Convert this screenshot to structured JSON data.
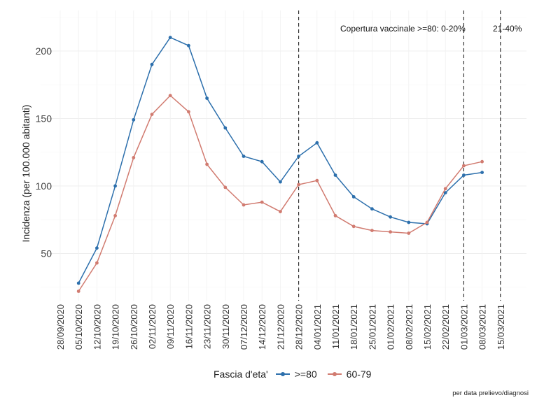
{
  "chart_data": {
    "type": "line",
    "xlabel": "",
    "ylabel": "Incidenza (per 100.000 abitanti)",
    "ylim": [
      15,
      230
    ],
    "yticks": [
      50,
      100,
      150,
      200
    ],
    "grid": true,
    "x_ticks": [
      "28/09/2020",
      "05/10/2020",
      "12/10/2020",
      "19/10/2020",
      "26/10/2020",
      "02/11/2020",
      "09/11/2020",
      "16/11/2020",
      "23/11/2020",
      "30/11/2020",
      "07/12/2020",
      "14/12/2020",
      "21/12/2020",
      "28/12/2020",
      "04/01/2021",
      "11/01/2021",
      "18/01/2021",
      "25/01/2021",
      "01/02/2021",
      "08/02/2021",
      "15/02/2021",
      "22/02/2021",
      "01/03/2021",
      "08/03/2021",
      "15/03/2021"
    ],
    "x": [
      "05/10/2020",
      "12/10/2020",
      "19/10/2020",
      "26/10/2020",
      "02/11/2020",
      "09/11/2020",
      "16/11/2020",
      "23/11/2020",
      "30/11/2020",
      "07/12/2020",
      "14/12/2020",
      "21/12/2020",
      "28/12/2020",
      "04/01/2021",
      "11/01/2021",
      "18/01/2021",
      "25/01/2021",
      "01/02/2021",
      "08/02/2021",
      "15/02/2021",
      "22/02/2021",
      "01/03/2021",
      "08/03/2021"
    ],
    "series": [
      {
        "name": ">=80",
        "color": "#2c6fac",
        "values": [
          28,
          54,
          100,
          149,
          190,
          210,
          204,
          165,
          143,
          122,
          118,
          103,
          122,
          132,
          108,
          92,
          83,
          77,
          73,
          72,
          95,
          108,
          110
        ]
      },
      {
        "name": "60-79",
        "color": "#d17b70",
        "values": [
          22,
          43,
          78,
          121,
          153,
          167,
          155,
          116,
          99,
          86,
          88,
          81,
          101,
          104,
          78,
          70,
          67,
          66,
          65,
          73,
          98,
          115,
          118
        ]
      }
    ],
    "vlines": [
      "28/12/2020",
      "01/03/2021",
      "15/03/2021"
    ],
    "annotations": [
      "Copertura vaccinale >=80:  0-20%",
      "21-40%"
    ],
    "legend_position": "bottom",
    "legend_title": "Fascia d'eta'"
  },
  "caption": "per data prelievo/diagnosi"
}
